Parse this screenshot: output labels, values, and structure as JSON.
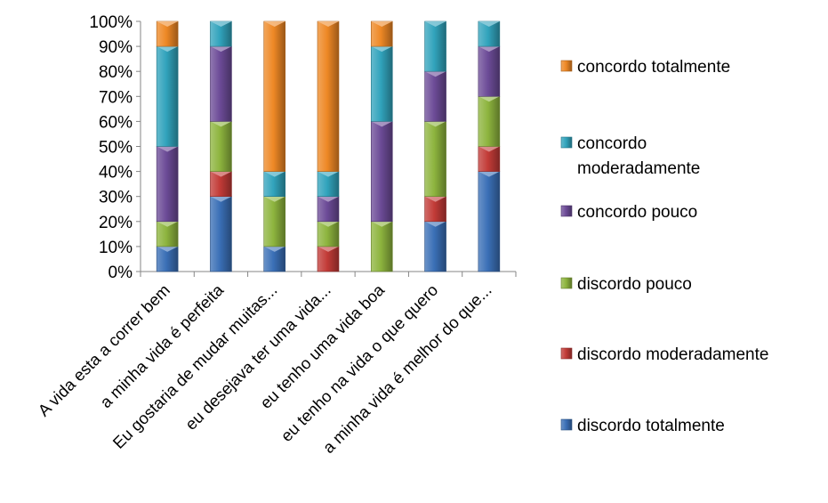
{
  "chart_data": {
    "type": "bar",
    "stacked": true,
    "percent": true,
    "categories": [
      "A vida esta a correr bem",
      "a minha vida é perfeita",
      "Eu gostaria de mudar muitas...",
      "eu desejava ter uma vida...",
      "eu tenho uma vida boa",
      "eu tenho na vida o que quero",
      "a minha vida é melhor do que..."
    ],
    "series": [
      {
        "name": "discordo totalmente",
        "color": "#3A6FB6",
        "values": [
          10,
          30,
          10,
          0,
          0,
          20,
          40
        ]
      },
      {
        "name": "discordo moderadamente",
        "color": "#C23B37",
        "values": [
          0,
          10,
          0,
          10,
          0,
          10,
          10
        ]
      },
      {
        "name": "discordo pouco",
        "color": "#8DB43E",
        "values": [
          10,
          20,
          20,
          10,
          20,
          30,
          20
        ]
      },
      {
        "name": "concordo pouco",
        "color": "#6C4B97",
        "values": [
          30,
          30,
          0,
          10,
          40,
          20,
          20
        ]
      },
      {
        "name": "concordo moderadamente",
        "color": "#31A3BC",
        "values": [
          40,
          10,
          10,
          10,
          30,
          20,
          10
        ]
      },
      {
        "name": "concordo totalmente",
        "color": "#EE8825",
        "values": [
          10,
          0,
          60,
          60,
          10,
          0,
          0
        ]
      }
    ],
    "ylim": [
      0,
      100
    ],
    "yticks": [
      "0%",
      "10%",
      "20%",
      "30%",
      "40%",
      "50%",
      "60%",
      "70%",
      "80%",
      "90%",
      "100%"
    ],
    "grid": false,
    "legend_position": "right",
    "legend_order": [
      "concordo totalmente",
      "concordo moderadamente",
      "concordo pouco",
      "discordo pouco",
      "discordo moderadamente",
      "discordo totalmente"
    ]
  }
}
